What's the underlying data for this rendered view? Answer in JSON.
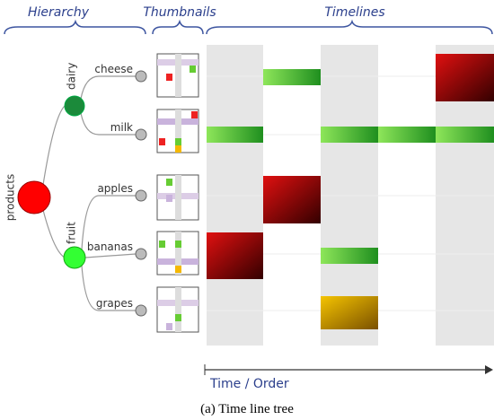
{
  "headers": {
    "hierarchy": "Hierarchy",
    "thumbnails": "Thumbnails",
    "timelines": "Timelines"
  },
  "tree": {
    "root": "products",
    "groups": [
      {
        "label": "dairy",
        "leaves": [
          "cheese",
          "milk"
        ]
      },
      {
        "label": "fruit",
        "leaves": [
          "apples",
          "bananas",
          "grapes"
        ]
      }
    ]
  },
  "axis_label": "Time / Order",
  "caption": "(a) Time line tree"
}
